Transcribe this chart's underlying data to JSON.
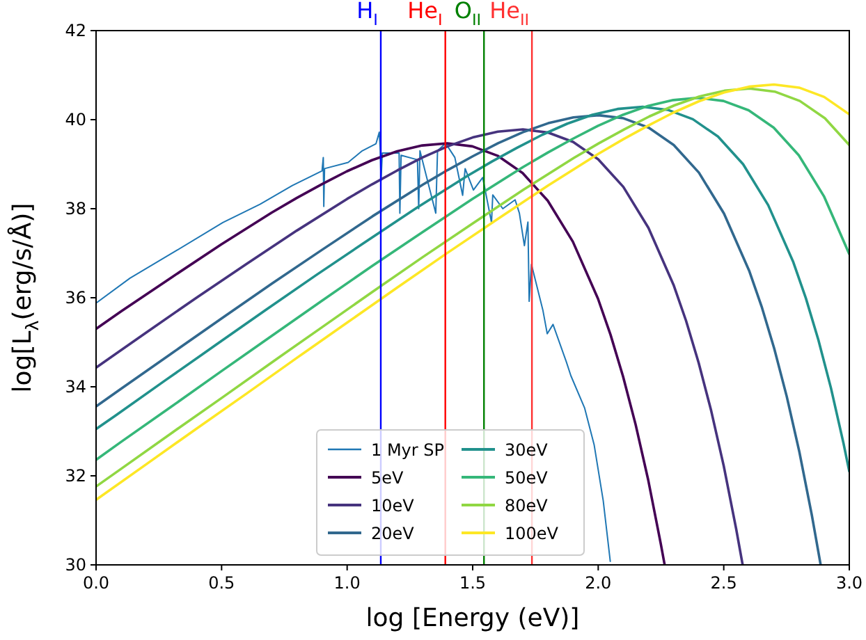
{
  "chart_data": {
    "type": "line",
    "xlabel": "log [Energy (eV)]",
    "ylabel": "log[L$_{λ}$(erg/s/Å)]",
    "xlim": [
      0,
      3
    ],
    "ylim": [
      30,
      42
    ],
    "xticks": [
      {
        "value": 0,
        "label": "0.0"
      },
      {
        "value": 0.5,
        "label": "0.5"
      },
      {
        "value": 1,
        "label": "1.0"
      },
      {
        "value": 1.5,
        "label": "1.5"
      },
      {
        "value": 2,
        "label": "2.0"
      },
      {
        "value": 2.5,
        "label": "2.5"
      },
      {
        "value": 3,
        "label": "3.0"
      }
    ],
    "yticks": [
      30,
      32,
      34,
      36,
      38,
      40,
      42
    ],
    "legend": "bottom",
    "grid": false,
    "marker": "none",
    "line_style": "solid",
    "ref_lines": [
      {
        "axis": "x",
        "value": 1.134,
        "label": "H$_{I}$",
        "color": "#0000ff"
      },
      {
        "axis": "x",
        "value": 1.391,
        "label": "He$_{I}$",
        "color": "#ff0000"
      },
      {
        "axis": "x",
        "value": 1.545,
        "label": "O$_{II}$",
        "color": "#008000"
      },
      {
        "axis": "x",
        "value": 1.736,
        "label": "He$_{II}$",
        "color": "#ff3030"
      }
    ],
    "series": [
      {
        "name": "1 Myr SP",
        "color": "#1f77b4",
        "x": [
          0,
          0.135,
          0.32,
          0.505,
          0.653,
          0.782,
          0.9,
          0.905,
          0.907,
          0.91,
          1.004,
          1.06,
          1.115,
          1.128,
          1.132,
          1.135,
          1.14,
          1.207,
          1.21,
          1.215,
          1.28,
          1.285,
          1.29,
          1.353,
          1.36,
          1.392,
          1.429,
          1.46,
          1.47,
          1.503,
          1.54,
          1.575,
          1.58,
          1.62,
          1.669,
          1.686,
          1.706,
          1.72,
          1.725,
          1.734,
          1.78,
          1.797,
          1.82,
          1.873,
          1.891,
          1.946,
          1.984,
          2.02,
          2.048
        ],
        "values": [
          35.88,
          36.44,
          37.06,
          37.69,
          38.1,
          38.52,
          38.85,
          39.15,
          38.05,
          38.9,
          39.04,
          39.3,
          39.46,
          39.72,
          39.3,
          38.63,
          39.25,
          39.25,
          37.9,
          39.2,
          39.1,
          38.0,
          39.3,
          37.9,
          39.3,
          39.47,
          39.15,
          38.3,
          38.9,
          38.42,
          38.7,
          37.69,
          38.31,
          38.0,
          38.2,
          37.9,
          37.17,
          37.7,
          35.92,
          36.75,
          35.71,
          35.19,
          35.4,
          34.56,
          34.25,
          33.52,
          32.69,
          31.44,
          30.08
        ]
      },
      {
        "name": "5eV",
        "color": "#440154",
        "x": [
          0,
          0.099,
          0.299,
          0.499,
          0.699,
          0.799,
          0.899,
          0.999,
          1.099,
          1.199,
          1.299,
          1.399,
          1.499,
          1.599,
          1.699,
          1.799,
          1.899,
          1.999,
          2.049,
          2.099,
          2.149,
          2.199,
          2.249,
          2.264
        ],
        "values": [
          35.3,
          35.69,
          36.45,
          37.2,
          37.91,
          38.24,
          38.55,
          38.84,
          39.09,
          39.29,
          39.42,
          39.47,
          39.4,
          39.19,
          38.8,
          38.18,
          37.26,
          35.98,
          35.17,
          34.23,
          33.15,
          31.91,
          30.48,
          30.02
        ]
      },
      {
        "name": "10eV",
        "color": "#46337e",
        "x": [
          0,
          0.2,
          0.4,
          0.6,
          0.8,
          1.0,
          1.1,
          1.2,
          1.3,
          1.4,
          1.5,
          1.6,
          1.7,
          1.8,
          1.9,
          2.0,
          2.1,
          2.2,
          2.3,
          2.35,
          2.4,
          2.45,
          2.5,
          2.55,
          2.575
        ],
        "values": [
          34.43,
          35.22,
          36.0,
          36.76,
          37.51,
          38.22,
          38.55,
          38.86,
          39.15,
          39.4,
          39.6,
          39.73,
          39.78,
          39.71,
          39.5,
          39.11,
          38.49,
          37.57,
          36.29,
          35.48,
          34.54,
          33.46,
          32.22,
          30.79,
          30.01
        ]
      },
      {
        "name": "20eV",
        "color": "#31688e",
        "x": [
          0,
          0.101,
          0.301,
          0.501,
          0.701,
          0.901,
          1.101,
          1.301,
          1.401,
          1.501,
          1.601,
          1.701,
          1.801,
          1.901,
          2.001,
          2.101,
          2.201,
          2.301,
          2.401,
          2.501,
          2.601,
          2.651,
          2.701,
          2.751,
          2.801,
          2.851,
          2.886
        ],
        "values": [
          33.56,
          33.96,
          34.75,
          35.54,
          36.32,
          37.08,
          37.83,
          38.54,
          38.87,
          39.18,
          39.47,
          39.72,
          39.92,
          40.05,
          40.1,
          40.03,
          39.82,
          39.43,
          38.81,
          37.89,
          36.61,
          35.8,
          34.86,
          33.78,
          32.54,
          31.11,
          30.0
        ]
      },
      {
        "name": "30eV",
        "color": "#21918c",
        "x": [
          0,
          0.077,
          0.277,
          0.477,
          0.677,
          0.877,
          1.077,
          1.277,
          1.477,
          1.577,
          1.677,
          1.777,
          1.877,
          1.977,
          2.077,
          2.177,
          2.277,
          2.377,
          2.477,
          2.577,
          2.677,
          2.777,
          2.827,
          2.877,
          2.927,
          2.977,
          3.0
        ],
        "values": [
          33.05,
          33.35,
          34.15,
          34.94,
          35.73,
          36.51,
          37.27,
          38.02,
          38.73,
          39.06,
          39.37,
          39.66,
          39.91,
          40.11,
          40.24,
          40.29,
          40.22,
          40.01,
          39.62,
          39.0,
          38.08,
          36.8,
          35.99,
          35.05,
          33.97,
          32.73,
          32.1
        ]
      },
      {
        "name": "50eV",
        "color": "#35b779",
        "x": [
          0,
          0.099,
          0.299,
          0.499,
          0.699,
          0.899,
          1.099,
          1.299,
          1.499,
          1.699,
          1.799,
          1.899,
          1.999,
          2.099,
          2.199,
          2.299,
          2.399,
          2.499,
          2.599,
          2.699,
          2.799,
          2.899,
          3.0
        ],
        "values": [
          32.36,
          32.76,
          33.55,
          34.35,
          35.14,
          35.93,
          36.71,
          37.47,
          38.22,
          38.93,
          39.26,
          39.57,
          39.86,
          40.11,
          40.31,
          40.44,
          40.49,
          40.42,
          40.21,
          39.82,
          39.2,
          38.28,
          36.98
        ]
      },
      {
        "name": "80eV",
        "color": "#90d743",
        "x": [
          0,
          0.103,
          0.303,
          0.503,
          0.703,
          0.903,
          1.103,
          1.303,
          1.503,
          1.703,
          1.903,
          2.003,
          2.103,
          2.203,
          2.303,
          2.403,
          2.503,
          2.603,
          2.703,
          2.803,
          2.903,
          3.0
        ],
        "values": [
          31.76,
          32.17,
          32.97,
          33.76,
          34.56,
          35.35,
          36.14,
          36.92,
          37.68,
          38.43,
          39.14,
          39.47,
          39.78,
          40.07,
          40.32,
          40.52,
          40.65,
          40.7,
          40.63,
          40.42,
          40.03,
          39.43
        ]
      },
      {
        "name": "100eV",
        "color": "#fde725",
        "x": [
          0,
          0.2,
          0.4,
          0.6,
          0.8,
          1.0,
          1.2,
          1.4,
          1.6,
          1.8,
          2.0,
          2.1,
          2.2,
          2.3,
          2.4,
          2.5,
          2.6,
          2.7,
          2.8,
          2.9,
          3.0
        ],
        "values": [
          31.46,
          32.26,
          33.06,
          33.85,
          34.65,
          35.44,
          36.23,
          37.01,
          37.77,
          38.52,
          39.23,
          39.56,
          39.87,
          40.16,
          40.41,
          40.61,
          40.74,
          40.79,
          40.72,
          40.51,
          40.12
        ]
      }
    ]
  }
}
